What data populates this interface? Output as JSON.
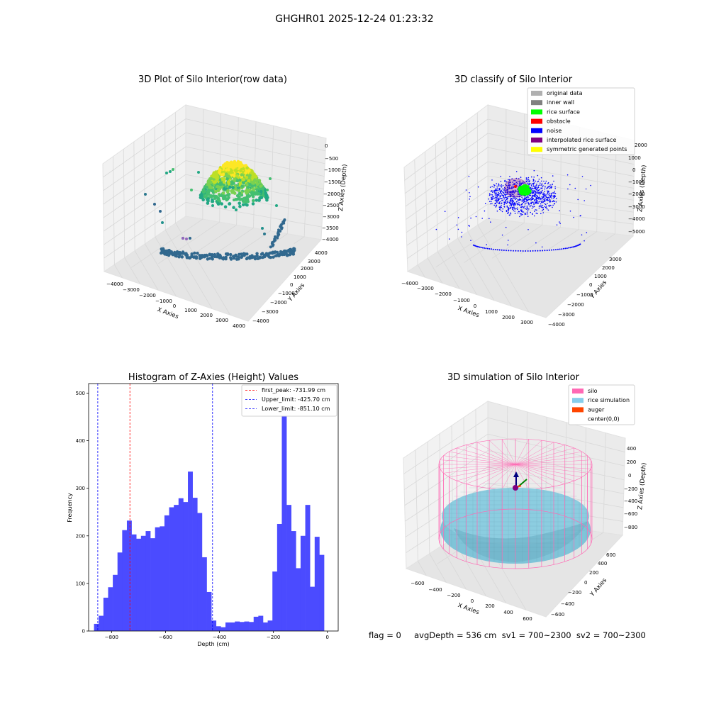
{
  "suptitle": "GHGHR01 2025-12-24 01:23:32",
  "footer": "flag = 0     avgDepth = 536 cm  sv1 = 700~2300  sv2 = 700~2300",
  "chart_data": [
    {
      "type": "scatter3d",
      "title": "3D Plot of Silo Interior(row data)",
      "xlabel": "X Axies",
      "ylabel": "Y Axies",
      "zlabel": "Z Axies (Depth)",
      "xticks": [
        "−4000",
        "−3000",
        "−2000",
        "−1000",
        "0",
        "1000",
        "2000",
        "3000",
        "4000"
      ],
      "yticks": [
        "−4000",
        "−3000",
        "−2000",
        "−1000",
        "0",
        "1000",
        "2000",
        "3000",
        "4000"
      ],
      "zticks": [
        "0",
        "−500",
        "−1000",
        "−1500",
        "−2000",
        "−2500",
        "−3000",
        "−3500",
        "−4000"
      ],
      "colormap": "viridis"
    },
    {
      "type": "scatter3d",
      "title": "3D classify of Silo Interior",
      "xlabel": "X Axies",
      "ylabel": "Y Axies",
      "zlabel": "Z Axies (Depth)",
      "xticks": [
        "−4000",
        "−3000",
        "−2000",
        "−1000",
        "0",
        "1000",
        "2000",
        "3000"
      ],
      "yticks": [
        "−4000",
        "−3000",
        "−2000",
        "−1000",
        "0",
        "1000",
        "2000",
        "3000"
      ],
      "zticks": [
        "2000",
        "1000",
        "0",
        "−1000",
        "−2000",
        "−3000",
        "−4000",
        "−5000"
      ],
      "legend": [
        {
          "label": "original data",
          "color": "#b0b0b0"
        },
        {
          "label": "inner wall",
          "color": "#808080"
        },
        {
          "label": "rice surface",
          "color": "#00ff00"
        },
        {
          "label": "obstacle",
          "color": "#ff0000"
        },
        {
          "label": "noise",
          "color": "#0000ff"
        },
        {
          "label": "interpolated rice surface",
          "color": "#800080"
        },
        {
          "label": "symmetric generated points",
          "color": "#ffff00"
        }
      ],
      "legend_position": "top-right"
    },
    {
      "type": "bar",
      "title": "Histogram of Z-Axies (Height) Values",
      "xlabel": "Depth (cm)",
      "ylabel": "Frequency",
      "xlim": [
        -885,
        40
      ],
      "ylim": [
        0,
        520
      ],
      "xticks": [
        -800,
        -600,
        -400,
        -200,
        0
      ],
      "xtick_labels": [
        "−800",
        "−600",
        "−400",
        "−200",
        "0"
      ],
      "yticks": [
        0,
        100,
        200,
        300,
        400,
        500
      ],
      "bin_start": -865,
      "bin_width": 17.4,
      "values": [
        15,
        32,
        70,
        92,
        118,
        165,
        212,
        232,
        203,
        194,
        200,
        210,
        195,
        218,
        220,
        243,
        260,
        265,
        279,
        271,
        335,
        280,
        248,
        155,
        82,
        22,
        10,
        8,
        18,
        18,
        20,
        19,
        20,
        19,
        30,
        32,
        18,
        22,
        125,
        225,
        470,
        265,
        210,
        132,
        200,
        265,
        93,
        198,
        160
      ],
      "bar_color": "#4b4bff",
      "vlines": [
        {
          "x": -731.99,
          "color": "#ff0000",
          "label": "first_peak: -731.99 cm"
        },
        {
          "x": -425.7,
          "color": "#0000ff",
          "label": "Upper_limit: -425.70 cm"
        },
        {
          "x": -851.1,
          "color": "#0000ff",
          "label": "Lower_limit: -851.10 cm"
        }
      ],
      "legend_position": "top-right"
    },
    {
      "type": "surface3d",
      "title": "3D simulation of Silo Interior",
      "xlabel": "X Axies",
      "ylabel": "Y Axies",
      "zlabel": "Z Axies (Depth)",
      "xticks": [
        "−600",
        "−400",
        "−200",
        "0",
        "200",
        "400",
        "600"
      ],
      "yticks": [
        "−600",
        "−400",
        "−200",
        "0",
        "200",
        "400",
        "600"
      ],
      "zticks": [
        "400",
        "200",
        "0",
        "−200",
        "−400",
        "−600",
        "−800"
      ],
      "legend": [
        {
          "label": "silo",
          "color": "#ff69b4"
        },
        {
          "label": "rice simulation",
          "color": "#87ceeb"
        },
        {
          "label": "auger",
          "color": "#ff4500"
        },
        {
          "label": "center(0,0)",
          "color": ""
        }
      ],
      "legend_position": "top-right"
    }
  ]
}
